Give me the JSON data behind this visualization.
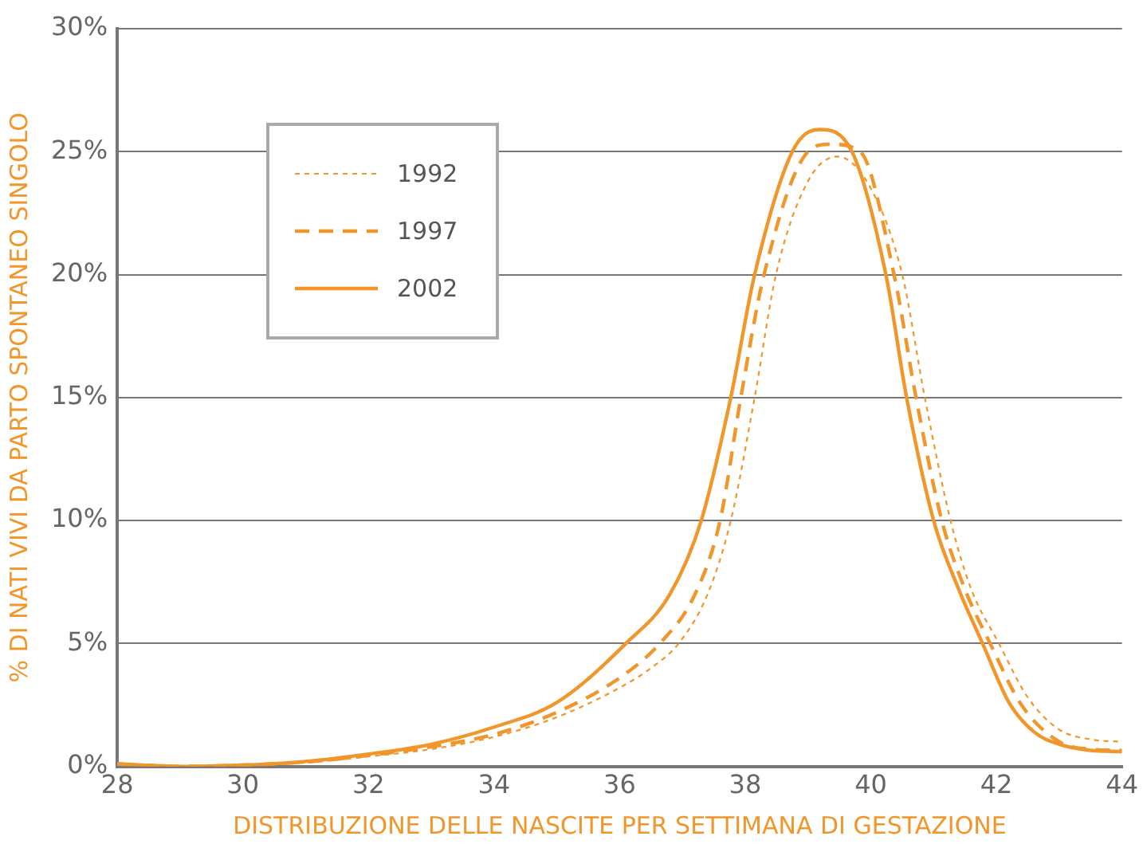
{
  "chart_data": {
    "type": "line",
    "xlabel": "DISTRIBUZIONE DELLE NASCITE PER SETTIMANA DI GESTAZIONE",
    "ylabel": "% DI NATI VIVI DA PARTO SPONTANEO SINGOLO",
    "xlim": [
      28,
      44
    ],
    "xticks": [
      28,
      30,
      32,
      34,
      36,
      38,
      40,
      42,
      44
    ],
    "ylim": [
      0,
      30
    ],
    "yticks": [
      {
        "value": 0,
        "label": "0%"
      },
      {
        "value": 5,
        "label": "5%"
      },
      {
        "value": 10,
        "label": "10%"
      },
      {
        "value": 15,
        "label": "15%"
      },
      {
        "value": 20,
        "label": "20%"
      },
      {
        "value": 25,
        "label": "25%"
      },
      {
        "value": 30,
        "label": "30%"
      }
    ],
    "grid": "y",
    "legend": "top left",
    "marker": "none",
    "series": [
      {
        "name": "1992",
        "color": "#f0962a",
        "line_style": "dotted",
        "x": [
          28,
          29,
          30,
          31,
          32,
          33,
          34,
          35,
          36,
          36.5,
          36.94,
          37.4,
          37.77,
          38.15,
          38.49,
          39,
          39.47,
          40,
          40.5,
          40.86,
          41.27,
          41.6,
          42.04,
          42.5,
          43,
          43.5,
          44
        ],
        "values": [
          0.1,
          0,
          0.05,
          0.15,
          0.4,
          0.7,
          1.2,
          2.0,
          3.2,
          4.0,
          5,
          7,
          10,
          15,
          20,
          23.8,
          24.8,
          23.5,
          20,
          15,
          10,
          7.2,
          5,
          2.8,
          1.5,
          1.1,
          1.0
        ]
      },
      {
        "name": "1997",
        "color": "#f0962a",
        "line_style": "dashed",
        "x": [
          28,
          29,
          30,
          31,
          32,
          33,
          34,
          35,
          36,
          36.64,
          37.2,
          37.6,
          37.93,
          38.3,
          39,
          39.34,
          39.83,
          40.37,
          40.72,
          41.13,
          41.5,
          41.9,
          42.4,
          43,
          43.5,
          44
        ],
        "values": [
          0.1,
          0,
          0.05,
          0.18,
          0.45,
          0.8,
          1.3,
          2.2,
          3.6,
          5,
          7,
          10,
          15,
          20,
          25,
          25.3,
          25,
          20,
          15,
          10,
          7.2,
          5,
          2.5,
          1.0,
          0.7,
          0.65
        ]
      },
      {
        "name": "2002",
        "color": "#f0962a",
        "line_style": "solid",
        "x": [
          28,
          29,
          30,
          31,
          32,
          33,
          34,
          35,
          36.1,
          36.8,
          37.3,
          37.77,
          38.15,
          38.75,
          39.18,
          39.7,
          40.24,
          40.57,
          41,
          41.4,
          41.78,
          42.2,
          42.6,
          43,
          43.5,
          44
        ],
        "values": [
          0.1,
          0,
          0.05,
          0.2,
          0.5,
          0.9,
          1.6,
          2.6,
          5,
          7,
          10,
          15,
          20,
          25,
          25.9,
          25,
          20,
          15,
          10,
          7.2,
          5,
          2.6,
          1.4,
          0.9,
          0.65,
          0.6
        ]
      }
    ]
  }
}
